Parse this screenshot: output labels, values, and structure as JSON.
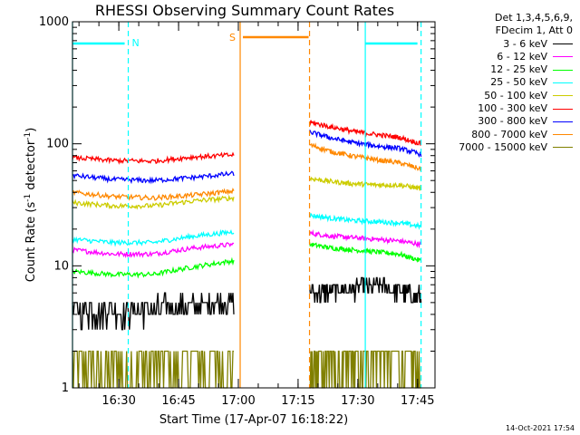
{
  "chart_data": {
    "type": "line",
    "title": "RHESSI Observing Summary Count Rates",
    "xlabel": "Start Time (17-Apr-07 16:18:22)",
    "ylabel_text": "Count Rate (s",
    "ylabel_sup1": "-1",
    "ylabel_mid": " detector",
    "ylabel_sup2": "-1",
    "ylabel_end": ")",
    "yscale": "log",
    "ylim": [
      1,
      1000
    ],
    "xlim_minutes": [
      0,
      91
    ],
    "ytick_labels": [
      "1",
      "10",
      "100",
      "1000"
    ],
    "xtick_labels": [
      "16:30",
      "16:45",
      "17:00",
      "17:15",
      "17:30",
      "17:45"
    ],
    "xtick_minutes": [
      11.63,
      26.63,
      41.63,
      56.63,
      71.63,
      86.63
    ],
    "legend_header": [
      "Det 1,3,4,5,6,9,",
      "FDecim 1, Att 0"
    ],
    "series": [
      {
        "name": "3 - 6 keV",
        "color": "#000000",
        "seg1": [
          4.4,
          4.3,
          4.5,
          4.7,
          5.0
        ],
        "seg2": [
          6.0,
          6.2,
          6.5,
          6.8,
          6.2,
          5.5
        ]
      },
      {
        "name": "6 - 12 keV",
        "color": "#ff00ff",
        "seg1": [
          13.5,
          12.5,
          12.5,
          14.0,
          15.0
        ],
        "seg2": [
          18.5,
          17.5,
          17.0,
          16.5,
          16.0,
          15.0
        ]
      },
      {
        "name": "12 - 25 keV",
        "color": "#00ff00",
        "seg1": [
          9.0,
          8.5,
          8.5,
          9.8,
          11.0
        ],
        "seg2": [
          15.0,
          14.0,
          13.5,
          13.0,
          12.5,
          11.0
        ]
      },
      {
        "name": "25 - 50 keV",
        "color": "#00ffff",
        "seg1": [
          16.5,
          15.5,
          15.5,
          17.5,
          19.0
        ],
        "seg2": [
          26.0,
          24.5,
          23.5,
          23.0,
          22.5,
          21.0
        ]
      },
      {
        "name": "50 - 100 keV",
        "color": "#cccc00",
        "seg1": [
          33.0,
          31.0,
          31.0,
          34.0,
          36.0
        ],
        "seg2": [
          52.0,
          49.0,
          47.0,
          46.0,
          46.0,
          43.0
        ]
      },
      {
        "name": "100 - 300 keV",
        "color": "#ff0000",
        "seg1": [
          77.0,
          73.0,
          72.0,
          78.0,
          81.0
        ],
        "seg2": [
          150.0,
          137.0,
          126.0,
          119.0,
          113.0,
          100.0
        ]
      },
      {
        "name": "300 - 800 keV",
        "color": "#0000ff",
        "seg1": [
          55.0,
          51.0,
          50.0,
          53.0,
          57.0
        ],
        "seg2": [
          125.0,
          111.0,
          102.0,
          96.0,
          92.0,
          82.0
        ]
      },
      {
        "name": "800 - 7000 keV",
        "color": "#ff8800",
        "seg1": [
          40.0,
          37.0,
          36.0,
          38.0,
          41.0
        ],
        "seg2": [
          98.0,
          86.0,
          79.0,
          74.0,
          70.0,
          62.0
        ]
      },
      {
        "name": "7000 - 15000 keV",
        "color": "#808000",
        "seg1": [
          1.6,
          1.5,
          1.5,
          1.6,
          1.6
        ],
        "seg2": [
          1.6,
          1.6,
          1.5,
          1.9,
          1.6,
          1.5
        ]
      }
    ],
    "flags": [
      {
        "label": "N",
        "color": "#00ffff",
        "label_pos": "after-second-line"
      },
      {
        "label": "S",
        "color": "#ff8800",
        "label_pos": "before-first-line"
      }
    ],
    "timestamp": "14-Oct-2021 17:54"
  }
}
